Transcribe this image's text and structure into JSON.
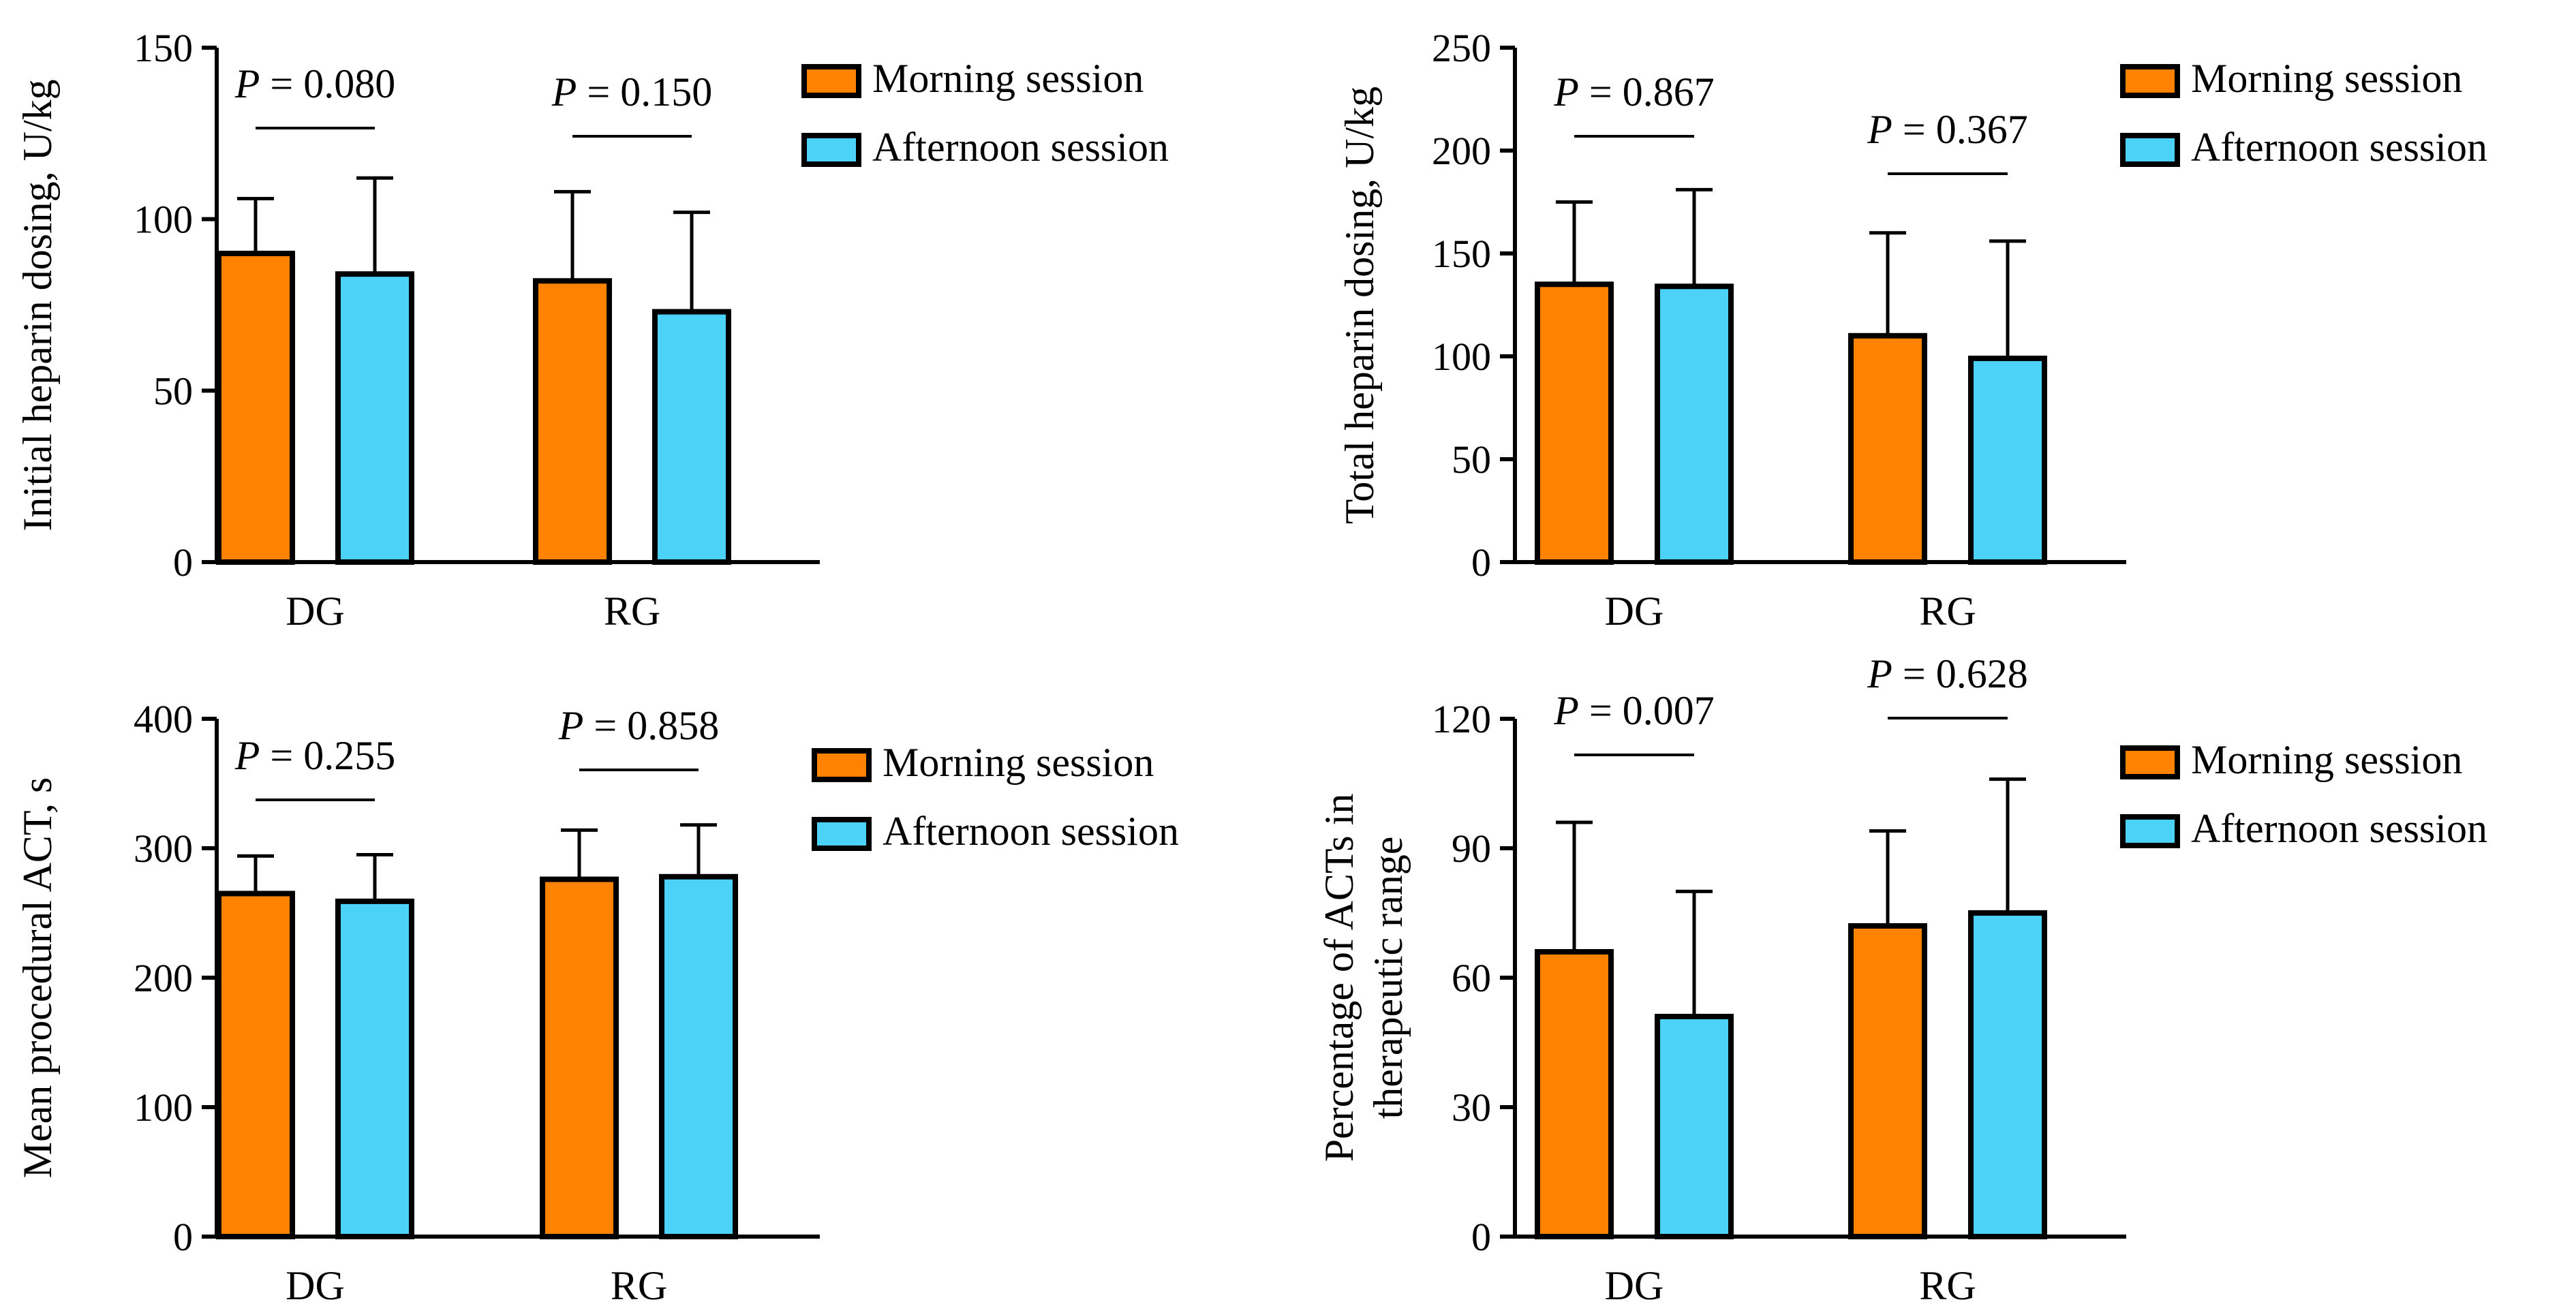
{
  "colors": {
    "morning": "#FF8200",
    "afternoon": "#4DD2F7",
    "stroke": "#000000"
  },
  "chart_data": [
    {
      "type": "bar",
      "categories": [
        "DG",
        "RG"
      ],
      "series": [
        {
          "name": "Morning session",
          "values": [
            90,
            82
          ],
          "errors": [
            106,
            108
          ]
        },
        {
          "name": "Afternoon session",
          "values": [
            84,
            73
          ],
          "errors": [
            112,
            102
          ]
        }
      ],
      "ylabel": "Initial heparin dosing, U/kg",
      "ylim": [
        0,
        150
      ],
      "yticks": [
        0,
        50,
        100,
        150
      ],
      "pvalues": [
        "P = 0.080",
        "P = 0.150"
      ],
      "legend": "top-right",
      "grid": false
    },
    {
      "type": "bar",
      "categories": [
        "DG",
        "RG"
      ],
      "series": [
        {
          "name": "Morning session",
          "values": [
            135,
            110
          ],
          "errors": [
            175,
            160
          ]
        },
        {
          "name": "Afternoon session",
          "values": [
            134,
            99
          ],
          "errors": [
            181,
            156
          ]
        }
      ],
      "ylabel": "Total heparin dosing, U/kg",
      "ylim": [
        0,
        250
      ],
      "yticks": [
        0,
        50,
        100,
        150,
        200,
        250
      ],
      "pvalues": [
        "P = 0.867",
        "P = 0.367"
      ],
      "legend": "top-right",
      "grid": false
    },
    {
      "type": "bar",
      "categories": [
        "DG",
        "RG"
      ],
      "series": [
        {
          "name": "Morning session",
          "values": [
            265,
            276
          ],
          "errors": [
            294,
            314
          ]
        },
        {
          "name": "Afternoon session",
          "values": [
            259,
            278
          ],
          "errors": [
            295,
            318
          ]
        }
      ],
      "ylabel": "Mean procedural ACT, s",
      "ylim": [
        0,
        400
      ],
      "yticks": [
        0,
        100,
        200,
        300,
        400
      ],
      "pvalues": [
        "P = 0.255",
        "P = 0.858"
      ],
      "legend": "top-right",
      "grid": false
    },
    {
      "type": "bar",
      "categories": [
        "DG",
        "RG"
      ],
      "series": [
        {
          "name": "Morning session",
          "values": [
            66,
            72
          ],
          "errors": [
            96,
            94
          ]
        },
        {
          "name": "Afternoon session",
          "values": [
            51,
            75
          ],
          "errors": [
            80,
            106
          ]
        }
      ],
      "ylabel": "Percentage of ACTs in therapeutic range",
      "ylabel_lines": [
        "Percentage of ACTs in",
        "therapeutic range"
      ],
      "ylim": [
        0,
        120
      ],
      "yticks": [
        0,
        30,
        60,
        90,
        120
      ],
      "pvalues": [
        "P = 0.007",
        "P = 0.628"
      ],
      "legend": "top-right",
      "grid": false
    }
  ]
}
